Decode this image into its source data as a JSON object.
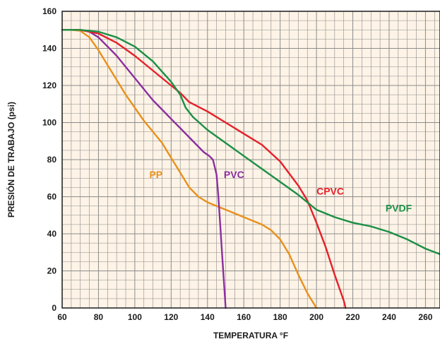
{
  "chart_data": {
    "type": "line",
    "title": "",
    "xlabel": "TEMPERATURA °F",
    "ylabel": "PRESIÓN DE TRABAJO (psi)",
    "xlim": [
      60,
      268
    ],
    "ylim": [
      0,
      160
    ],
    "x_ticks": [
      "60",
      "80",
      "100",
      "120",
      "140",
      "160",
      "180",
      "200",
      "220",
      "240",
      "260"
    ],
    "y_ticks": [
      "0",
      "20",
      "40",
      "60",
      "80",
      "100",
      "120",
      "140",
      "160"
    ],
    "grid": true,
    "background": "#fdf3e6",
    "grid_color": "#8c8c8c",
    "series": [
      {
        "name": "PP",
        "color": "#e8901c",
        "points": [
          [
            60,
            150
          ],
          [
            65,
            150
          ],
          [
            70,
            149.5
          ],
          [
            75,
            146
          ],
          [
            80,
            139
          ],
          [
            85,
            131
          ],
          [
            90,
            123
          ],
          [
            95,
            115
          ],
          [
            100,
            108
          ],
          [
            105,
            101
          ],
          [
            110,
            95
          ],
          [
            115,
            89
          ],
          [
            120,
            81
          ],
          [
            125,
            73
          ],
          [
            130,
            65
          ],
          [
            135,
            60
          ],
          [
            140,
            57
          ],
          [
            145,
            55
          ],
          [
            150,
            53
          ],
          [
            155,
            51
          ],
          [
            160,
            49
          ],
          [
            165,
            47
          ],
          [
            170,
            45
          ],
          [
            175,
            42
          ],
          [
            180,
            37
          ],
          [
            185,
            29
          ],
          [
            190,
            18
          ],
          [
            195,
            8
          ],
          [
            200,
            0
          ]
        ]
      },
      {
        "name": "PVC",
        "color": "#8b2fa0",
        "points": [
          [
            60,
            150
          ],
          [
            65,
            150
          ],
          [
            70,
            150
          ],
          [
            75,
            149
          ],
          [
            80,
            146
          ],
          [
            85,
            141
          ],
          [
            90,
            136
          ],
          [
            95,
            130
          ],
          [
            100,
            124
          ],
          [
            105,
            118
          ],
          [
            110,
            112
          ],
          [
            115,
            107
          ],
          [
            120,
            102
          ],
          [
            125,
            97
          ],
          [
            130,
            92
          ],
          [
            135,
            87
          ],
          [
            138,
            84
          ],
          [
            141,
            82
          ],
          [
            143,
            80
          ],
          [
            145,
            72
          ],
          [
            146,
            60
          ],
          [
            147,
            45
          ],
          [
            148,
            30
          ],
          [
            149,
            15
          ],
          [
            150,
            0
          ]
        ]
      },
      {
        "name": "CPVC",
        "color": "#e5202a",
        "points": [
          [
            60,
            150
          ],
          [
            70,
            150
          ],
          [
            80,
            148
          ],
          [
            90,
            143
          ],
          [
            100,
            136
          ],
          [
            110,
            128
          ],
          [
            120,
            120
          ],
          [
            125,
            116
          ],
          [
            130,
            111
          ],
          [
            140,
            106
          ],
          [
            150,
            100
          ],
          [
            160,
            94
          ],
          [
            170,
            88
          ],
          [
            180,
            79
          ],
          [
            190,
            66
          ],
          [
            195,
            58
          ],
          [
            200,
            46
          ],
          [
            205,
            33
          ],
          [
            210,
            18
          ],
          [
            215,
            4
          ],
          [
            216,
            0
          ]
        ]
      },
      {
        "name": "PVDF",
        "color": "#1b8f45",
        "points": [
          [
            60,
            150
          ],
          [
            70,
            150
          ],
          [
            80,
            149
          ],
          [
            90,
            146
          ],
          [
            100,
            141
          ],
          [
            110,
            133
          ],
          [
            120,
            122
          ],
          [
            125,
            115
          ],
          [
            128,
            108
          ],
          [
            132,
            103
          ],
          [
            140,
            96
          ],
          [
            150,
            89
          ],
          [
            160,
            82
          ],
          [
            170,
            75
          ],
          [
            180,
            68
          ],
          [
            190,
            61
          ],
          [
            200,
            53
          ],
          [
            210,
            49
          ],
          [
            220,
            46
          ],
          [
            230,
            44
          ],
          [
            240,
            41
          ],
          [
            250,
            37
          ],
          [
            260,
            32
          ],
          [
            268,
            29
          ]
        ]
      }
    ],
    "series_labels": [
      {
        "text": "PP",
        "x": 108,
        "y": 72
      },
      {
        "text": "PVC",
        "x": 149,
        "y": 72
      },
      {
        "text": "CPVC",
        "x": 200,
        "y": 63
      },
      {
        "text": "PVDF",
        "x": 238,
        "y": 54
      }
    ]
  }
}
